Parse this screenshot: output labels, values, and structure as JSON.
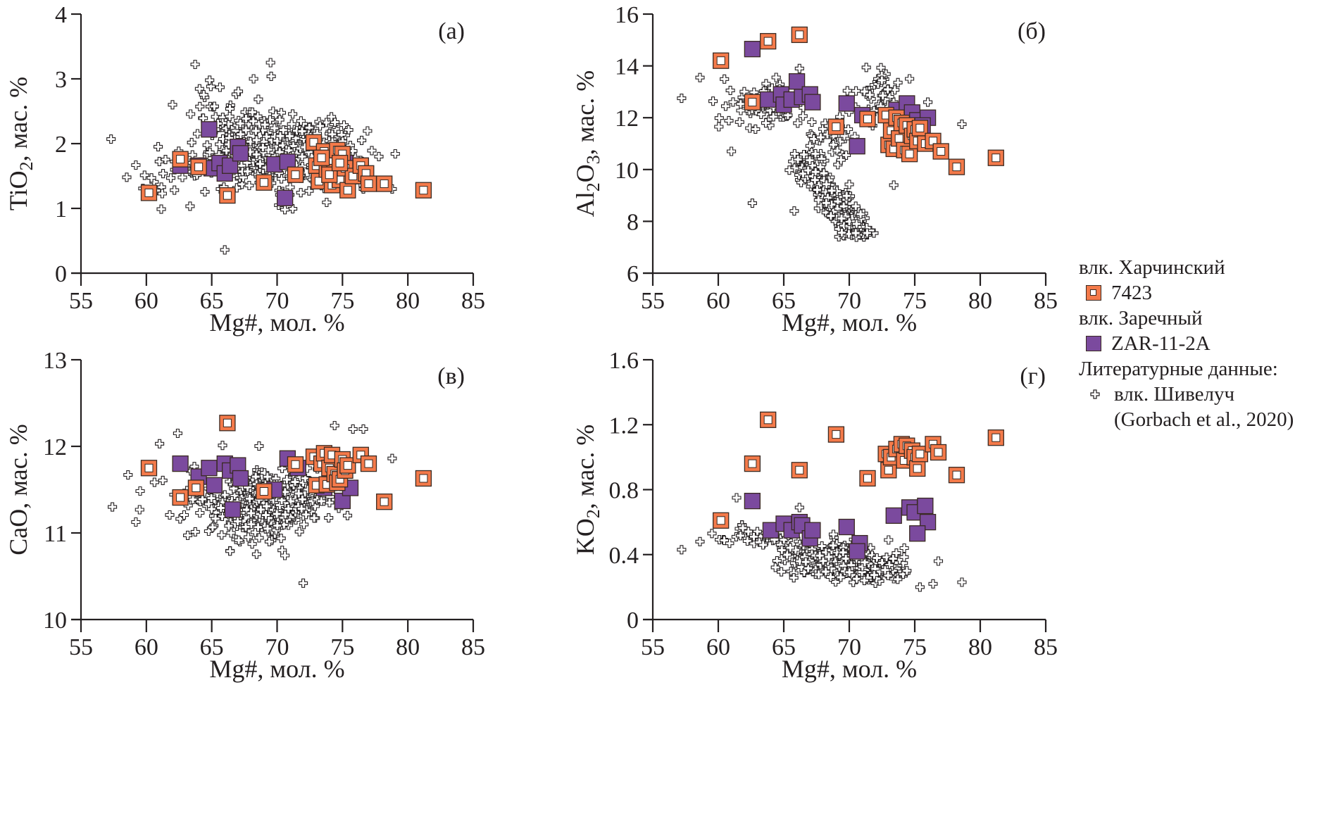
{
  "chart_data": [
    {
      "type": "scatter",
      "panel": "a",
      "panel_label": "(а)",
      "title": "",
      "xlabel": "Mg#, мол. %",
      "ylabel_main": "TiO",
      "ylabel_sub": "2",
      "ylabel_tail": ", мас. %",
      "xlim": [
        55,
        85
      ],
      "ylim": [
        0,
        4
      ],
      "xticks": [
        "55",
        "60",
        "65",
        "70",
        "75",
        "80",
        "85"
      ],
      "yticks": [
        "0",
        "1",
        "2",
        "3",
        "4"
      ],
      "series": [
        {
          "name": "7423",
          "marker": "open-square",
          "x": [
            60.2,
            62.6,
            64.0,
            66.2,
            69.0,
            71.4,
            72.8,
            73.0,
            73.2,
            73.6,
            73.8,
            74.0,
            74.2,
            74.4,
            74.6,
            74.8,
            75.0,
            75.2,
            75.4,
            75.8,
            76.4,
            76.8,
            77.0,
            78.2,
            81.2,
            74.0,
            73.4,
            74.8
          ],
          "y": [
            1.24,
            1.76,
            1.64,
            1.2,
            1.4,
            1.52,
            2.02,
            1.66,
            1.42,
            1.88,
            1.6,
            1.72,
            1.36,
            1.56,
            1.9,
            1.44,
            1.84,
            1.62,
            1.28,
            1.5,
            1.66,
            1.54,
            1.38,
            1.38,
            1.28,
            1.52,
            1.78,
            1.7
          ]
        },
        {
          "name": "ZAR-11-2A",
          "marker": "filled-square",
          "x": [
            62.6,
            64.0,
            64.8,
            65.0,
            65.6,
            66.0,
            66.4,
            67.0,
            67.2,
            69.8,
            70.8,
            70.6,
            73.6,
            74.0,
            74.8,
            75.2,
            76.4
          ],
          "y": [
            1.66,
            1.66,
            2.22,
            1.62,
            1.7,
            1.54,
            1.66,
            1.95,
            1.85,
            1.68,
            1.72,
            1.16,
            1.86,
            1.76,
            1.82,
            1.7,
            1.66
          ]
        },
        {
          "name": "влк. Шивелуч (Gorbach et al., 2020)",
          "marker": "cross",
          "generated": "cloud",
          "clusters": [
            {
              "cx": 70.0,
              "cy": 1.85,
              "sx": 2.6,
              "sy": 0.28,
              "n": 260
            },
            {
              "cx": 66.8,
              "cy": 2.35,
              "sx": 1.6,
              "sy": 0.32,
              "n": 70
            },
            {
              "cx": 73.5,
              "cy": 1.85,
              "sx": 2.0,
              "sy": 0.22,
              "n": 80
            },
            {
              "cx": 63.5,
              "cy": 1.55,
              "sx": 2.2,
              "sy": 0.25,
              "n": 40
            }
          ],
          "outliers_x": [
            57.3,
            58.5,
            66.0,
            69.5,
            70.6,
            76.6,
            78.8,
            68.2,
            62.0
          ],
          "outliers_y": [
            2.07,
            1.48,
            0.36,
            3.25,
            0.98,
            1.3,
            1.3,
            3.0,
            2.6
          ]
        }
      ]
    },
    {
      "type": "scatter",
      "panel": "b",
      "panel_label": "(б)",
      "title": "",
      "xlabel": "Mg#, мол. %",
      "ylabel_main": "Al",
      "ylabel_sub": "2",
      "ylabel_mid": "O",
      "ylabel_sub2": "3",
      "ylabel_tail": ", мас. %",
      "xlim": [
        55,
        85
      ],
      "ylim": [
        6,
        16
      ],
      "xticks": [
        "55",
        "60",
        "65",
        "70",
        "75",
        "80",
        "85"
      ],
      "yticks": [
        "6",
        "8",
        "10",
        "12",
        "14",
        "16"
      ],
      "series": [
        {
          "name": "7423",
          "marker": "open-square",
          "x": [
            60.2,
            62.6,
            63.8,
            66.2,
            69.0,
            71.4,
            72.8,
            73.0,
            73.2,
            73.4,
            73.6,
            73.8,
            74.0,
            74.2,
            74.4,
            74.6,
            74.8,
            75.0,
            75.2,
            75.4,
            75.8,
            76.4,
            77.0,
            78.2,
            81.2
          ],
          "y": [
            14.2,
            12.6,
            14.95,
            15.2,
            11.65,
            11.95,
            12.1,
            10.95,
            11.5,
            10.8,
            12.0,
            11.2,
            11.8,
            10.75,
            11.7,
            10.6,
            11.3,
            11.55,
            11.1,
            11.6,
            11.0,
            11.1,
            10.7,
            10.1,
            10.45
          ]
        },
        {
          "name": "ZAR-11-2A",
          "marker": "filled-square",
          "x": [
            62.6,
            63.8,
            64.8,
            65.0,
            65.6,
            66.0,
            66.4,
            67.0,
            67.2,
            69.8,
            70.6,
            71.0,
            73.6,
            74.4,
            74.8,
            75.2,
            76.0,
            75.6
          ],
          "y": [
            14.65,
            12.7,
            12.9,
            12.5,
            12.7,
            13.4,
            12.8,
            12.9,
            12.6,
            12.55,
            10.9,
            12.1,
            12.3,
            12.55,
            12.2,
            11.9,
            12.0,
            11.7
          ]
        },
        {
          "name": "влк. Шивелуч (Gorbach et al., 2020)",
          "marker": "cross",
          "generated": "trend",
          "trend": [
            [
              66.5,
              10.4
            ],
            [
              68.0,
              9.3
            ],
            [
              69.5,
              8.2
            ],
            [
              71.0,
              7.6
            ]
          ],
          "trend_spread": 0.45,
          "trend_n": 300,
          "clusters": [
            {
              "cx": 63.5,
              "cy": 12.5,
              "sx": 1.6,
              "sy": 0.45,
              "n": 60
            },
            {
              "cx": 72.0,
              "cy": 12.9,
              "sx": 0.9,
              "sy": 0.5,
              "n": 45
            },
            {
              "cx": 68.5,
              "cy": 11.2,
              "sx": 1.2,
              "sy": 0.5,
              "n": 40
            }
          ],
          "outliers_x": [
            57.2,
            58.6,
            61.0,
            62.6,
            65.8,
            78.6,
            73.4,
            74.6,
            76.0,
            66.2
          ],
          "outliers_y": [
            12.75,
            13.55,
            10.7,
            8.7,
            8.4,
            11.75,
            9.4,
            13.5,
            12.6,
            13.9
          ]
        }
      ]
    },
    {
      "type": "scatter",
      "panel": "c",
      "panel_label": "(в)",
      "title": "",
      "xlabel": "Mg#, мол. %",
      "ylabel_main": "CaO",
      "ylabel_tail": ", мас. %",
      "xlim": [
        55,
        85
      ],
      "ylim": [
        10,
        13
      ],
      "xticks": [
        "55",
        "60",
        "65",
        "70",
        "75",
        "80",
        "85"
      ],
      "yticks": [
        "10",
        "11",
        "12",
        "13"
      ],
      "series": [
        {
          "name": "7423",
          "marker": "open-square",
          "x": [
            60.2,
            62.6,
            63.8,
            66.2,
            69.0,
            71.4,
            72.8,
            73.0,
            73.4,
            73.6,
            73.8,
            74.0,
            74.2,
            74.4,
            74.6,
            74.8,
            75.0,
            75.2,
            75.4,
            76.4,
            77.0,
            78.2,
            81.2
          ],
          "y": [
            11.75,
            11.41,
            11.52,
            12.27,
            11.48,
            11.79,
            11.88,
            11.55,
            11.8,
            11.92,
            11.56,
            11.75,
            11.9,
            11.68,
            11.58,
            11.62,
            11.85,
            11.72,
            11.78,
            11.9,
            11.8,
            11.36,
            11.63
          ]
        },
        {
          "name": "ZAR-11-2A",
          "marker": "filled-square",
          "x": [
            62.6,
            64.0,
            64.8,
            65.2,
            66.0,
            66.4,
            67.0,
            67.2,
            66.6,
            69.8,
            70.8,
            71.6,
            73.6,
            75.0,
            75.6
          ],
          "y": [
            11.8,
            11.65,
            11.75,
            11.55,
            11.8,
            11.72,
            11.78,
            11.63,
            11.27,
            11.5,
            11.86,
            11.75,
            11.52,
            11.37,
            11.52
          ]
        },
        {
          "name": "влк. Шивелуч (Gorbach et al., 2020)",
          "marker": "cross",
          "generated": "cloud",
          "clusters": [
            {
              "cx": 69.8,
              "cy": 11.38,
              "sx": 2.2,
              "sy": 0.18,
              "n": 280
            },
            {
              "cx": 67.5,
              "cy": 11.2,
              "sx": 1.8,
              "sy": 0.2,
              "n": 60
            },
            {
              "cx": 63.0,
              "cy": 11.4,
              "sx": 1.6,
              "sy": 0.25,
              "n": 30
            }
          ],
          "outliers_x": [
            57.4,
            58.6,
            62.4,
            74.4,
            75.8,
            76.6,
            78.8,
            66.4,
            70.6,
            72.0,
            69.4
          ],
          "outliers_y": [
            11.3,
            11.67,
            12.15,
            12.24,
            12.2,
            12.2,
            11.86,
            10.79,
            10.74,
            10.42,
            10.9
          ]
        }
      ]
    },
    {
      "type": "scatter",
      "panel": "d",
      "panel_label": "(г)",
      "title": "",
      "xlabel": "Mg#, мол. %",
      "ylabel_main": "KO",
      "ylabel_sub": "2",
      "ylabel_tail": ", мас. %",
      "xlim": [
        55,
        85
      ],
      "ylim": [
        0,
        1.6
      ],
      "xticks": [
        "55",
        "60",
        "65",
        "70",
        "75",
        "80",
        "85"
      ],
      "yticks": [
        "0",
        "0.4",
        "0.8",
        "1.2",
        "1.6"
      ],
      "series": [
        {
          "name": "7423",
          "marker": "open-square",
          "x": [
            60.2,
            62.6,
            63.8,
            66.2,
            69.0,
            71.4,
            72.8,
            73.0,
            73.2,
            73.6,
            74.0,
            74.2,
            74.4,
            74.8,
            75.0,
            75.2,
            75.4,
            76.4,
            76.8,
            78.2,
            81.2
          ],
          "y": [
            0.61,
            0.96,
            1.23,
            0.92,
            1.14,
            0.87,
            1.02,
            0.92,
            1.0,
            1.05,
            1.08,
            0.98,
            1.07,
            1.04,
            1.0,
            0.93,
            1.02,
            1.08,
            1.03,
            0.89,
            1.12
          ]
        },
        {
          "name": "ZAR-11-2A",
          "marker": "filled-square",
          "x": [
            62.6,
            64.0,
            65.0,
            65.6,
            66.2,
            66.4,
            67.0,
            67.2,
            69.8,
            70.8,
            70.6,
            73.4,
            74.6,
            75.0,
            75.8,
            76.0,
            75.2
          ],
          "y": [
            0.73,
            0.55,
            0.59,
            0.55,
            0.6,
            0.58,
            0.5,
            0.55,
            0.57,
            0.47,
            0.42,
            0.64,
            0.69,
            0.66,
            0.7,
            0.6,
            0.53
          ]
        },
        {
          "name": "влк. Шивелуч (Gorbach et al., 2020)",
          "marker": "cross",
          "generated": "cloud",
          "clusters": [
            {
              "cx": 69.2,
              "cy": 0.36,
              "sx": 2.0,
              "sy": 0.05,
              "n": 260
            },
            {
              "cx": 72.0,
              "cy": 0.3,
              "sx": 1.2,
              "sy": 0.04,
              "n": 70
            },
            {
              "cx": 62.5,
              "cy": 0.5,
              "sx": 1.6,
              "sy": 0.04,
              "n": 35
            },
            {
              "cx": 66.0,
              "cy": 0.45,
              "sx": 1.4,
              "sy": 0.07,
              "n": 40
            }
          ],
          "outliers_x": [
            57.2,
            58.6,
            61.4,
            66.2,
            76.8,
            78.6,
            75.4,
            76.4,
            74.2,
            73.0
          ],
          "outliers_y": [
            0.43,
            0.48,
            0.75,
            0.69,
            0.36,
            0.23,
            0.2,
            0.22,
            0.44,
            0.49
          ]
        }
      ]
    }
  ],
  "legend": {
    "group1_title": "влк. Харчинский",
    "group1_item": "7423",
    "group2_title": "влк. Заречный",
    "group2_item": "ZAR-11-2A",
    "group3_title": "Литературные данные:",
    "group3_item_line1": "влк. Шивелуч",
    "group3_item_line2": "(Gorbach et al., 2020)"
  },
  "colors": {
    "open_square_fill": "#f47a4a",
    "filled_square_fill": "#7b4a9e",
    "marker_edge": "#3a2a22",
    "axis": "#231f20"
  }
}
